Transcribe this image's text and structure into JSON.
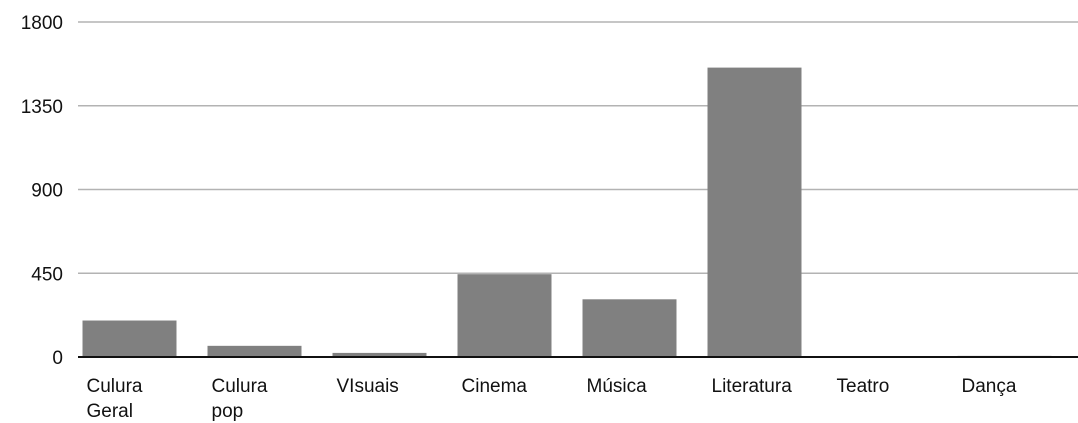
{
  "colors": {
    "bar": "#808080",
    "grid": "#b3b3b3",
    "baseline": "#111111",
    "text": "#111111"
  },
  "chart_data": {
    "type": "bar",
    "categories": [
      [
        "Culura",
        "Geral"
      ],
      [
        "Culura",
        "pop"
      ],
      [
        "VIsuais"
      ],
      [
        "Cinema"
      ],
      [
        "Música"
      ],
      [
        "Literatura"
      ],
      [
        "Teatro"
      ],
      [
        "Dança"
      ]
    ],
    "values": [
      196,
      60,
      22,
      445,
      310,
      1555,
      4,
      6
    ],
    "ylim": [
      0,
      1800
    ],
    "yticks": [
      0,
      450,
      900,
      1350,
      1800
    ],
    "ytick_labels": [
      "0",
      "450",
      "900",
      "1350",
      "1800"
    ],
    "grid": true,
    "legend": "none"
  }
}
